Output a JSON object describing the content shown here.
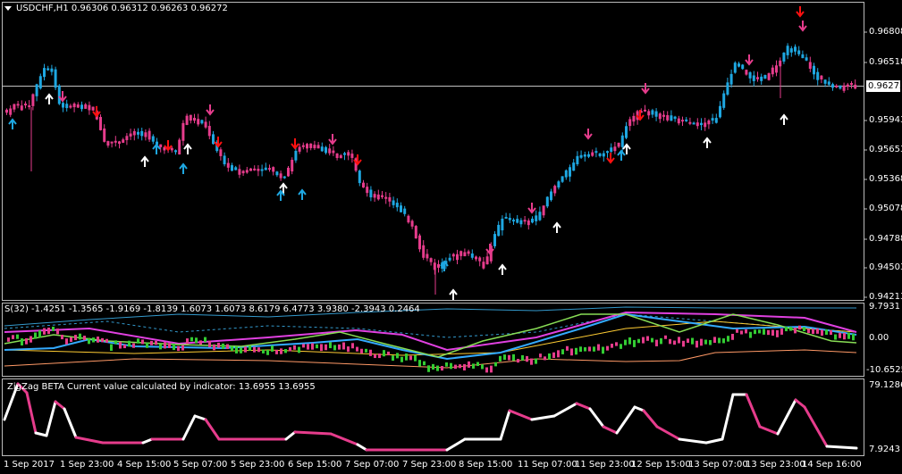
{
  "header": {
    "symbol_line": "USDCHF,H1  0.96306 0.96312 0.96263 0.96272"
  },
  "price_axis": {
    "ticks": [
      "0.96808",
      "0.96518",
      "0.95943",
      "0.95653",
      "0.95368",
      "0.95078",
      "0.94788",
      "0.94503",
      "0.94213"
    ],
    "current_price": "0.96272"
  },
  "indicator1": {
    "label": "S(32) -1.4251 -1.3565 -1.9169 -1.8139 1.6073 1.6073 8.6179 6.4773 3.9380 -2.3943 0.2464",
    "ticks": [
      "9.7931",
      "0.00",
      "-10.6525"
    ]
  },
  "indicator2": {
    "label": "ZigZag BETA Current value calculated by indicator: 13.6955 13.6955",
    "ticks": [
      "79.1286",
      "7.9243"
    ]
  },
  "time_axis": {
    "ticks": [
      "1 Sep 2017",
      "1 Sep 23:00",
      "4 Sep 15:00",
      "5 Sep 07:00",
      "5 Sep 23:00",
      "6 Sep 15:00",
      "7 Sep 07:00",
      "7 Sep 23:00",
      "8 Sep 15:00",
      "11 Sep 07:00",
      "11 Sep 23:00",
      "12 Sep 15:00",
      "13 Sep 07:00",
      "13 Sep 23:00",
      "14 Sep 16:00"
    ]
  },
  "colors": {
    "bull": "#1ea7e1",
    "bear": "#e63c8c",
    "up_arrow_white": "#ffffff",
    "up_arrow_blue": "#1ea7e1",
    "down_arrow_red": "#ff1010",
    "down_arrow_pink": "#e63c8c",
    "magenta_line": "#e040e0",
    "orange_line": "#ffcc33",
    "green_candle": "#33cc33",
    "salmon_line": "#ff9966"
  }
}
